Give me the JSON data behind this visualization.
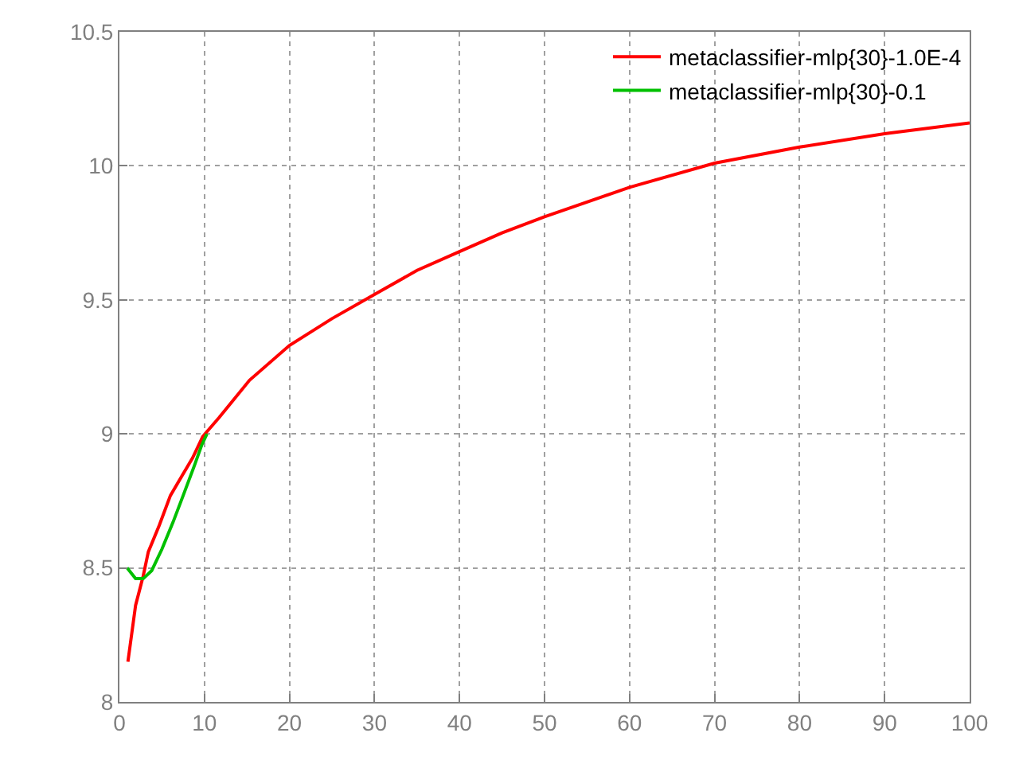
{
  "chart_data": {
    "type": "line",
    "xlim": [
      0,
      100
    ],
    "ylim": [
      8,
      10.5
    ],
    "xticks": [
      0,
      10,
      20,
      30,
      40,
      50,
      60,
      70,
      80,
      90,
      100
    ],
    "yticks": [
      8,
      8.5,
      9,
      9.5,
      10,
      10.5
    ],
    "grid": true,
    "legend": "top right",
    "line_style": "solid",
    "marker": "none",
    "series": [
      {
        "name": "metaclassifier-mlp{30}-1.0E-4",
        "color": "#ff0000",
        "x": [
          1,
          1.9,
          2.8,
          3.4,
          4.7,
          6,
          7.3,
          8.6,
          9.8,
          11.7,
          15.3,
          20,
          25,
          30,
          35,
          40,
          45,
          50,
          60,
          70,
          80,
          90,
          100
        ],
        "values": [
          8.15,
          8.36,
          8.47,
          8.56,
          8.66,
          8.77,
          8.84,
          8.91,
          8.99,
          9.06,
          9.2,
          9.33,
          9.43,
          9.52,
          9.61,
          9.68,
          9.75,
          9.81,
          9.92,
          10.01,
          10.07,
          10.12,
          10.16
        ]
      },
      {
        "name": "metaclassifier-mlp{30}-0.1",
        "color": "#00c000",
        "x": [
          0.9,
          1.9,
          2.8,
          3.8,
          5,
          6.3,
          7.5,
          8.8,
          9.7,
          10.3
        ],
        "values": [
          8.5,
          8.46,
          8.46,
          8.49,
          8.57,
          8.67,
          8.77,
          8.88,
          8.96,
          9.0
        ]
      }
    ]
  }
}
